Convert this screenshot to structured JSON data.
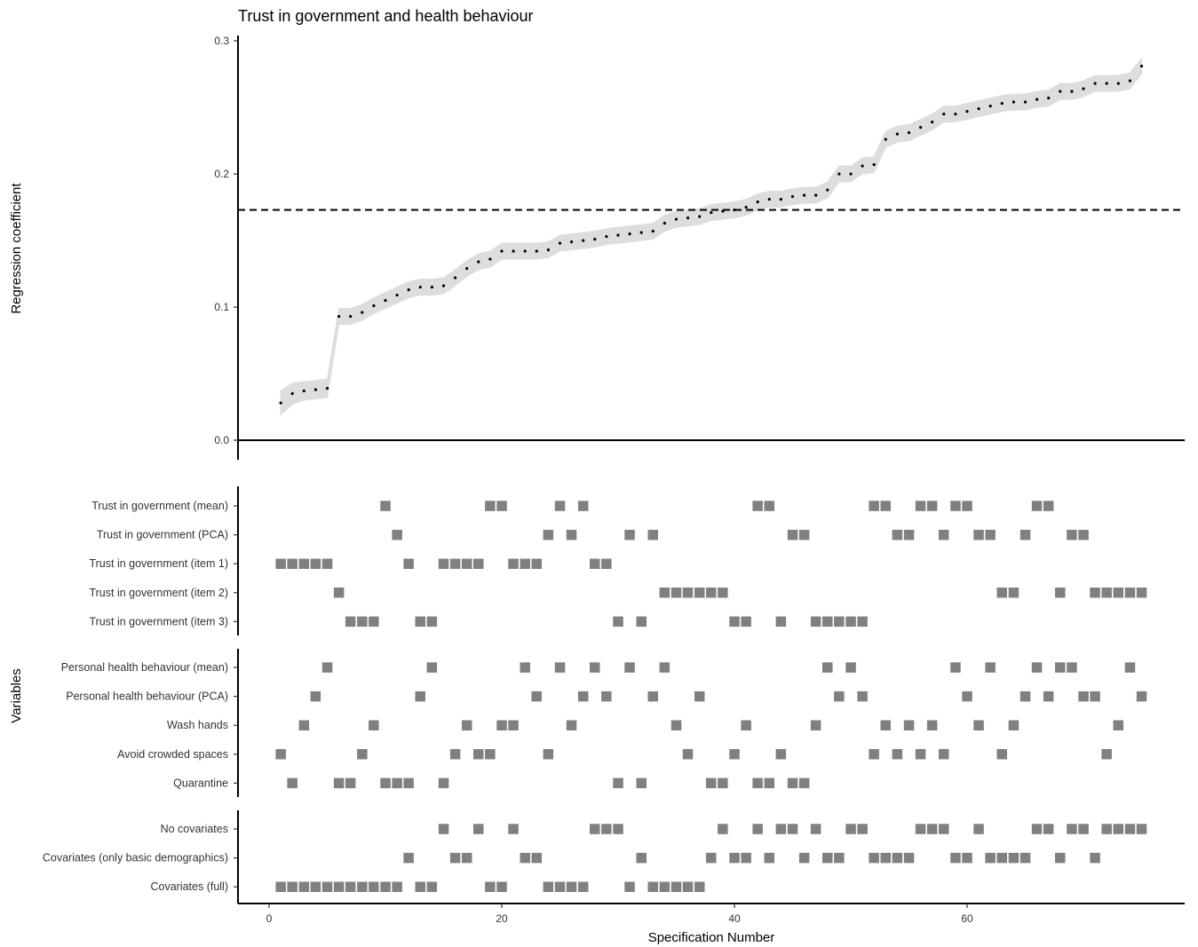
{
  "chart_data": {
    "type": "specification-curve",
    "title": "Trust in government and health behaviour",
    "ylabel": "Regression coefficient",
    "xlabel": "Specification Number",
    "rows_label": "Variables",
    "ylim": [
      0,
      0.3
    ],
    "yticks": [
      "0.3",
      "0.2",
      "0.1",
      "0.0"
    ],
    "yticks_values": [
      0.3,
      0.2,
      0.1,
      0.0
    ],
    "xlim": [
      -2.5,
      78.5
    ],
    "xticks": [
      "0",
      "20",
      "40",
      "60"
    ],
    "xticks_values": [
      0,
      20,
      40,
      60
    ],
    "reference_line": 0.173,
    "point_color": "#000000",
    "ribbon_color": "#dddddd",
    "tile_color": "#808080",
    "curve": {
      "x": [
        1,
        2,
        3,
        4,
        5,
        6,
        7,
        8,
        9,
        10,
        11,
        12,
        13,
        14,
        15,
        16,
        17,
        18,
        19,
        20,
        21,
        22,
        23,
        24,
        25,
        26,
        27,
        28,
        29,
        30,
        31,
        32,
        33,
        34,
        35,
        36,
        37,
        38,
        39,
        40,
        41,
        42,
        43,
        44,
        45,
        46,
        47,
        48,
        49,
        50,
        51,
        52,
        53,
        54,
        55,
        56,
        57,
        58,
        59,
        60,
        61,
        62,
        63,
        64,
        65,
        66,
        67,
        68,
        69,
        70,
        71,
        72,
        73,
        74,
        75
      ],
      "y": [
        0.028,
        0.035,
        0.037,
        0.038,
        0.039,
        0.093,
        0.093,
        0.096,
        0.101,
        0.105,
        0.109,
        0.113,
        0.115,
        0.115,
        0.116,
        0.122,
        0.129,
        0.134,
        0.136,
        0.142,
        0.142,
        0.142,
        0.142,
        0.143,
        0.148,
        0.149,
        0.15,
        0.151,
        0.153,
        0.154,
        0.155,
        0.156,
        0.157,
        0.163,
        0.166,
        0.167,
        0.168,
        0.171,
        0.172,
        0.173,
        0.175,
        0.179,
        0.181,
        0.181,
        0.183,
        0.184,
        0.184,
        0.188,
        0.2,
        0.2,
        0.206,
        0.207,
        0.226,
        0.23,
        0.231,
        0.235,
        0.239,
        0.245,
        0.245,
        0.247,
        0.249,
        0.251,
        0.253,
        0.254,
        0.254,
        0.256,
        0.257,
        0.262,
        0.262,
        0.264,
        0.268,
        0.268,
        0.268,
        0.27,
        0.281
      ],
      "lower": [
        0.019,
        0.027,
        0.03,
        0.031,
        0.032,
        0.087,
        0.087,
        0.09,
        0.095,
        0.099,
        0.103,
        0.107,
        0.109,
        0.109,
        0.11,
        0.116,
        0.123,
        0.128,
        0.13,
        0.136,
        0.136,
        0.136,
        0.136,
        0.137,
        0.142,
        0.143,
        0.144,
        0.145,
        0.147,
        0.148,
        0.149,
        0.15,
        0.151,
        0.157,
        0.16,
        0.161,
        0.162,
        0.165,
        0.166,
        0.167,
        0.169,
        0.173,
        0.175,
        0.175,
        0.177,
        0.178,
        0.178,
        0.182,
        0.194,
        0.194,
        0.2,
        0.201,
        0.22,
        0.224,
        0.225,
        0.229,
        0.233,
        0.239,
        0.239,
        0.241,
        0.243,
        0.245,
        0.247,
        0.248,
        0.248,
        0.25,
        0.251,
        0.256,
        0.256,
        0.258,
        0.262,
        0.262,
        0.262,
        0.264,
        0.275
      ],
      "upper": [
        0.037,
        0.043,
        0.044,
        0.045,
        0.046,
        0.099,
        0.099,
        0.102,
        0.107,
        0.111,
        0.115,
        0.119,
        0.121,
        0.121,
        0.122,
        0.128,
        0.135,
        0.14,
        0.142,
        0.148,
        0.148,
        0.148,
        0.148,
        0.149,
        0.154,
        0.155,
        0.156,
        0.157,
        0.159,
        0.16,
        0.161,
        0.162,
        0.163,
        0.169,
        0.172,
        0.173,
        0.174,
        0.177,
        0.178,
        0.179,
        0.181,
        0.185,
        0.187,
        0.187,
        0.189,
        0.19,
        0.19,
        0.194,
        0.206,
        0.206,
        0.212,
        0.213,
        0.232,
        0.236,
        0.237,
        0.241,
        0.245,
        0.251,
        0.251,
        0.253,
        0.255,
        0.257,
        0.259,
        0.26,
        0.26,
        0.262,
        0.263,
        0.268,
        0.268,
        0.27,
        0.274,
        0.274,
        0.274,
        0.276,
        0.287
      ]
    },
    "groups": [
      {
        "rows": [
          {
            "label": "Trust in government (mean)",
            "x": [
              10,
              19,
              20,
              25,
              27,
              42,
              43,
              52,
              53,
              56,
              57,
              59,
              60,
              66,
              67
            ]
          },
          {
            "label": "Trust in government (PCA)",
            "x": [
              11,
              24,
              26,
              31,
              33,
              45,
              46,
              54,
              55,
              58,
              61,
              62,
              65,
              69,
              70
            ]
          },
          {
            "label": "Trust in government (item 1)",
            "x": [
              1,
              2,
              3,
              4,
              5,
              12,
              15,
              16,
              17,
              18,
              21,
              22,
              23,
              28,
              29
            ]
          },
          {
            "label": "Trust in government (item 2)",
            "x": [
              6,
              34,
              35,
              36,
              37,
              38,
              39,
              63,
              64,
              68,
              71,
              72,
              73,
              74,
              75
            ]
          },
          {
            "label": "Trust in government (item 3)",
            "x": [
              7,
              8,
              9,
              13,
              14,
              30,
              32,
              40,
              41,
              44,
              47,
              48,
              49,
              50,
              51
            ]
          }
        ]
      },
      {
        "rows": [
          {
            "label": "Personal health behaviour (mean)",
            "x": [
              5,
              14,
              22,
              25,
              28,
              31,
              34,
              48,
              50,
              59,
              62,
              66,
              68,
              69,
              74
            ]
          },
          {
            "label": "Personal health behaviour (PCA)",
            "x": [
              4,
              13,
              23,
              27,
              29,
              33,
              37,
              49,
              51,
              60,
              65,
              67,
              70,
              71,
              75
            ]
          },
          {
            "label": "Wash hands",
            "x": [
              3,
              9,
              17,
              20,
              21,
              26,
              35,
              41,
              47,
              53,
              55,
              57,
              61,
              64,
              73
            ]
          },
          {
            "label": "Avoid crowded spaces",
            "x": [
              1,
              8,
              16,
              18,
              19,
              24,
              36,
              40,
              44,
              52,
              54,
              56,
              58,
              63,
              72
            ]
          },
          {
            "label": "Quarantine",
            "x": [
              2,
              6,
              7,
              10,
              11,
              12,
              15,
              30,
              32,
              38,
              39,
              42,
              43,
              45,
              46
            ]
          }
        ]
      },
      {
        "rows": [
          {
            "label": "No covariates",
            "x": [
              15,
              18,
              21,
              28,
              29,
              30,
              39,
              42,
              44,
              45,
              47,
              50,
              51,
              56,
              57,
              58,
              61,
              66,
              67,
              69,
              70,
              72,
              73,
              74,
              75
            ]
          },
          {
            "label": "Covariates (only basic demographics)",
            "x": [
              12,
              16,
              17,
              22,
              23,
              32,
              38,
              40,
              41,
              43,
              46,
              48,
              49,
              52,
              53,
              54,
              55,
              59,
              60,
              62,
              63,
              64,
              65,
              68,
              71
            ]
          },
          {
            "label": "Covariates (full)",
            "x": [
              1,
              2,
              3,
              4,
              5,
              6,
              7,
              8,
              9,
              10,
              11,
              13,
              14,
              19,
              20,
              24,
              25,
              26,
              27,
              31,
              33,
              34,
              35,
              36,
              37
            ]
          }
        ]
      }
    ]
  }
}
